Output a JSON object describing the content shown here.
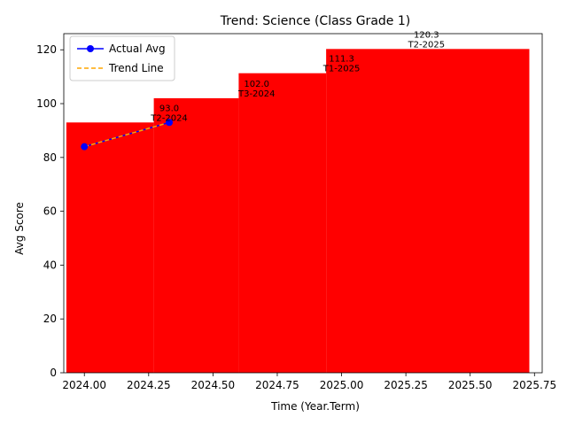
{
  "chart_data": {
    "type": "bar",
    "title": "Trend: Science (Class Grade 1)",
    "xlabel": "Time (Year.Term)",
    "ylabel": "Avg Score",
    "xlim": [
      2023.92,
      2025.78
    ],
    "ylim": [
      0,
      126
    ],
    "xticks": [
      2024.0,
      2024.25,
      2024.5,
      2024.75,
      2025.0,
      2025.25,
      2025.5,
      2025.75
    ],
    "xtick_labels": [
      "2024.00",
      "2024.25",
      "2024.50",
      "2024.75",
      "2025.00",
      "2025.25",
      "2025.50",
      "2025.75"
    ],
    "yticks": [
      0,
      20,
      40,
      60,
      80,
      100,
      120
    ],
    "ytick_labels": [
      "0",
      "20",
      "40",
      "60",
      "80",
      "100",
      "120"
    ],
    "grid": false,
    "legend_position": "top-left",
    "bar_color": "#ff0000",
    "bars": [
      {
        "x_start": 2023.93,
        "x_end": 2024.72,
        "value": 93.0
      },
      {
        "x_start": 2024.26,
        "x_end": 2024.72,
        "value": 102.0
      },
      {
        "x_start": 2024.6,
        "x_end": 2024.72,
        "value": 111.3
      },
      {
        "x_start": 2024.93,
        "x_end": 2025.72,
        "value": 120.3
      }
    ],
    "bar_fill_regions": [
      {
        "x_start": 2023.93,
        "x_end": 2024.27,
        "value": 93.0
      },
      {
        "x_start": 2024.27,
        "x_end": 2024.6,
        "value": 102.0
      },
      {
        "x_start": 2024.6,
        "x_end": 2024.94,
        "value": 111.3
      },
      {
        "x_start": 2024.94,
        "x_end": 2025.73,
        "value": 120.3
      }
    ],
    "data_labels": [
      {
        "x": 2024.33,
        "value_text": "93.0",
        "term_text": "T2-2024",
        "y": 93.0
      },
      {
        "x": 2024.67,
        "value_text": "102.0",
        "term_text": "T3-2024",
        "y": 102.0
      },
      {
        "x": 2025.0,
        "value_text": "111.3",
        "term_text": "T1-2025",
        "y": 111.3
      },
      {
        "x": 2025.33,
        "value_text": "120.3",
        "term_text": "T2-2025",
        "y": 120.3
      }
    ],
    "series": [
      {
        "name": "Actual Avg",
        "style": "line-marker",
        "color": "#0000ff",
        "x": [
          2024.0,
          2024.33
        ],
        "y": [
          84.0,
          93.0
        ]
      },
      {
        "name": "Trend Line",
        "style": "dashed",
        "color": "#ffa500",
        "x": [
          2024.0,
          2024.33
        ],
        "y": [
          84.0,
          93.0
        ]
      }
    ]
  }
}
